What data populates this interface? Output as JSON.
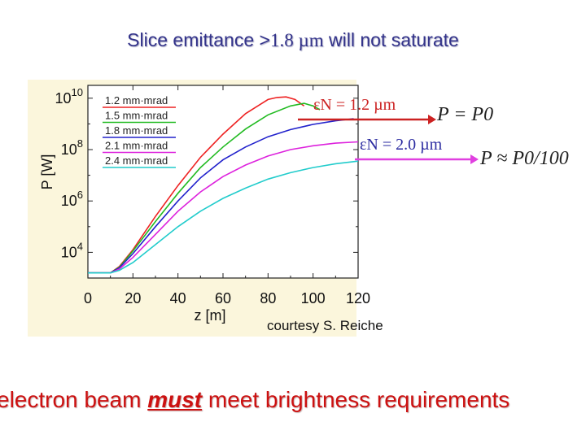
{
  "slide": {
    "title_pre": "Slice emittance >",
    "title_num": "1.8 ",
    "title_unit": "µm",
    "title_post": " will not saturate",
    "courtesy": "courtesy S. Reiche",
    "bottom_pre": "electron beam ",
    "bottom_emph": "must",
    "bottom_post": " meet brightness requirements"
  },
  "annotations": {
    "eps12": "εN = 1.2 µm",
    "eps20": "εN = 2.0 µm",
    "eq_sat": "P = P0",
    "eq_unsat": "P ≈ P0/100",
    "color_red": "#cc2222",
    "color_pink": "#e040e0"
  },
  "chart_data": {
    "type": "line",
    "xlabel": "z [m]",
    "ylabel": "P [W]",
    "xlim": [
      0,
      120
    ],
    "ylim_log10": [
      3,
      10.5
    ],
    "x_ticks": [
      0,
      20,
      40,
      60,
      80,
      100,
      120
    ],
    "y_ticks": [
      {
        "exp": 10,
        "label": "10",
        "sup": "10"
      },
      {
        "exp": 8,
        "label": "10",
        "sup": "8"
      },
      {
        "exp": 6,
        "label": "10",
        "sup": "6"
      },
      {
        "exp": 4,
        "label": "10",
        "sup": "4"
      }
    ],
    "legend_position": "top-left",
    "series": [
      {
        "name": "1.2 mm·mrad",
        "color": "#ee2222",
        "x": [
          0,
          10,
          14,
          20,
          30,
          40,
          50,
          60,
          70,
          80,
          84,
          88,
          92,
          96
        ],
        "y_log10": [
          3.2,
          3.2,
          3.45,
          4.1,
          5.4,
          6.6,
          7.7,
          8.6,
          9.4,
          9.95,
          10.03,
          10.05,
          9.95,
          9.7
        ]
      },
      {
        "name": "1.5 mm·mrad",
        "color": "#22bb22",
        "x": [
          0,
          10,
          14,
          20,
          30,
          40,
          50,
          60,
          70,
          80,
          90,
          96,
          100,
          103
        ],
        "y_log10": [
          3.2,
          3.2,
          3.42,
          4.05,
          5.2,
          6.3,
          7.3,
          8.1,
          8.8,
          9.35,
          9.7,
          9.8,
          9.7,
          9.55
        ]
      },
      {
        "name": "1.8 mm·mrad",
        "color": "#2222cc",
        "x": [
          0,
          10,
          14,
          20,
          30,
          40,
          50,
          60,
          70,
          80,
          90,
          100,
          110,
          118
        ],
        "y_log10": [
          3.2,
          3.2,
          3.4,
          3.95,
          5.0,
          6.0,
          6.9,
          7.6,
          8.1,
          8.5,
          8.78,
          8.98,
          9.12,
          9.2
        ]
      },
      {
        "name": "2.1 mm·mrad",
        "color": "#dd22dd",
        "x": [
          0,
          10,
          14,
          20,
          30,
          40,
          50,
          60,
          70,
          80,
          90,
          100,
          110,
          120
        ],
        "y_log10": [
          3.2,
          3.2,
          3.35,
          3.8,
          4.7,
          5.6,
          6.35,
          6.95,
          7.4,
          7.75,
          8.0,
          8.15,
          8.25,
          8.3
        ]
      },
      {
        "name": "2.4 mm·mrad",
        "color": "#22cccc",
        "x": [
          0,
          10,
          14,
          20,
          30,
          40,
          50,
          60,
          70,
          80,
          90,
          100,
          110,
          120
        ],
        "y_log10": [
          3.2,
          3.2,
          3.3,
          3.6,
          4.3,
          5.0,
          5.6,
          6.1,
          6.5,
          6.85,
          7.1,
          7.3,
          7.45,
          7.55
        ]
      }
    ]
  }
}
